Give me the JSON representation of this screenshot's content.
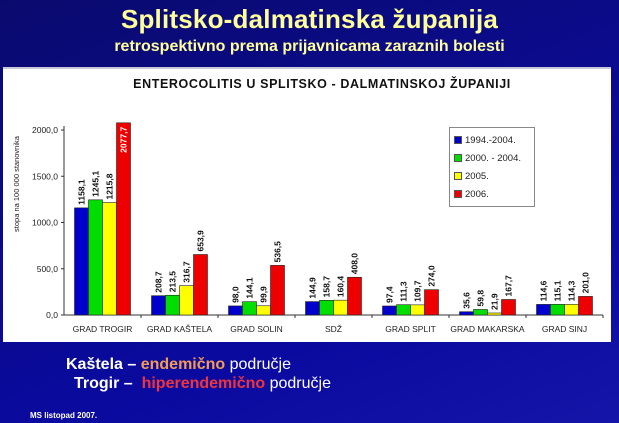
{
  "slide": {
    "title": "Splitsko-dalmatinska županija",
    "subtitle": "retrospektivno prema prijavnicama zaraznih bolesti",
    "line1": {
      "place": "Kaštela",
      "dash": " – ",
      "highlight": "endemično",
      "rest": " područje"
    },
    "line2": {
      "place": "Trogir",
      "dash": " –  ",
      "highlight": "hiperendemično",
      "rest": " područje"
    },
    "footer": "MS listopad 2007.",
    "colors": {
      "background": "#0b0b8c",
      "title": "#ffff99",
      "endemic": "#f59a52",
      "hyperendemic": "#f0343c"
    }
  },
  "chart_data": {
    "type": "bar",
    "title": "ENTEROCOLITIS U SPLITSKO - DALMATINSKOJ ŽUPANIJI",
    "xlabel": "",
    "ylabel": "stopa na 100 000 stanovnika",
    "ylim": [
      0,
      2000
    ],
    "yticks": [
      "0,0",
      "500,0",
      "1000,0",
      "1500,0",
      "2000,0"
    ],
    "grid": false,
    "legend_position": "upper right (inside)",
    "categories": [
      "GRAD TROGIR",
      "GRAD KAŠTELA",
      "GRAD SOLIN",
      "SDŽ",
      "GRAD SPLIT",
      "GRAD MAKARSKA",
      "GRAD SINJ"
    ],
    "series": [
      {
        "name": "1994.-2004.",
        "color": "#0000cc",
        "values": [
          1158.1,
          208.7,
          98.0,
          144.9,
          97.4,
          35.6,
          114.6
        ],
        "labels": [
          "1158,1",
          "208,7",
          "98,0",
          "144,9",
          "97,4",
          "35,6",
          "114,6"
        ]
      },
      {
        "name": "2000. - 2004.",
        "color": "#00dd00",
        "values": [
          1245.1,
          213.5,
          144.1,
          158.7,
          111.3,
          59.8,
          115.1
        ],
        "labels": [
          "1245,1",
          "213,5",
          "144,1",
          "158,7",
          "111,3",
          "59,8",
          "115,1"
        ]
      },
      {
        "name": "2005.",
        "color": "#ffff00",
        "values": [
          1215.8,
          316.7,
          99.9,
          160.4,
          109.7,
          21.9,
          114.3
        ],
        "labels": [
          "1215,8",
          "316,7",
          "99,9",
          "160,4",
          "109,7",
          "21,9",
          "114,3"
        ]
      },
      {
        "name": "2006.",
        "color": "#ee0000",
        "values": [
          2077.7,
          653.9,
          536.5,
          408.0,
          274.0,
          167.7,
          201.0
        ],
        "labels": [
          "2077,7",
          "653,9",
          "536,5",
          "408,0",
          "274,0",
          "167,7",
          "201,0"
        ]
      }
    ]
  }
}
